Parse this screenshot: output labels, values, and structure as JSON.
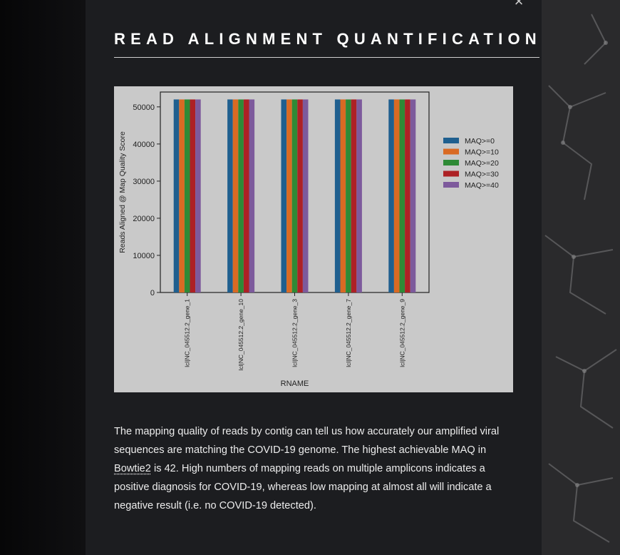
{
  "modal": {
    "title": "READ ALIGNMENT QUANTIFICATION",
    "close_icon": "close-icon",
    "description": {
      "part1": "The mapping quality of reads by contig can tell us how accurately our amplified viral sequences are matching the COVID-19 genome. The highest achievable MAQ in ",
      "link_text": "Bowtie2",
      "part2": " is 42. High numbers of mapping reads on multiple amplicons indicates a positive diagnosis for COVID-19, whereas low mapping at almost all will indicate a negative result (i.e. no COVID-19 detected)."
    }
  },
  "chart_data": {
    "type": "bar",
    "xlabel": "RNAME",
    "ylabel": "Reads Aligned @ Map Quality Score",
    "ylim": [
      0,
      54000
    ],
    "yticks": [
      0,
      10000,
      20000,
      30000,
      40000,
      50000
    ],
    "categories": [
      "lcl|NC_045512.2_gene_1",
      "lcl|NC_045512.2_gene_10",
      "lcl|NC_045512.2_gene_3",
      "lcl|NC_045512.2_gene_7",
      "lcl|NC_045512.2_gene_9"
    ],
    "series": [
      {
        "name": "MAQ>=0",
        "color": "#1f5f8f",
        "values": [
          52000,
          52000,
          52000,
          52000,
          52000
        ]
      },
      {
        "name": "MAQ>=10",
        "color": "#d96a23",
        "values": [
          52000,
          52000,
          52000,
          52000,
          52000
        ]
      },
      {
        "name": "MAQ>=20",
        "color": "#2e8a36",
        "values": [
          52000,
          52000,
          52000,
          52000,
          52000
        ]
      },
      {
        "name": "MAQ>=30",
        "color": "#ad2125",
        "values": [
          52000,
          52000,
          52000,
          52000,
          52000
        ]
      },
      {
        "name": "MAQ>=40",
        "color": "#7d5a9c",
        "values": [
          52000,
          52000,
          52000,
          52000,
          52000
        ]
      }
    ],
    "grid": false,
    "legend": "right"
  }
}
